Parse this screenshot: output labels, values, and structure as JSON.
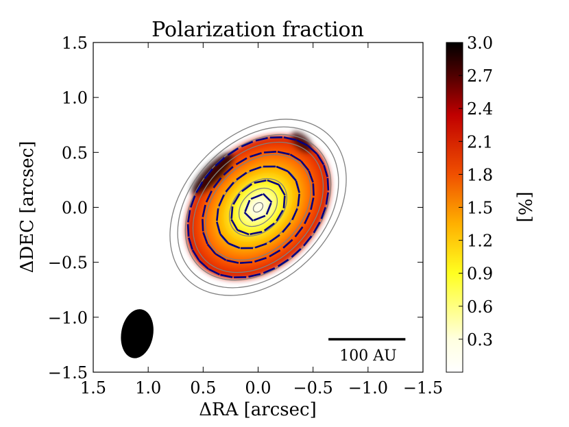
{
  "chart_data": {
    "type": "heatmap",
    "title": "Polarization fraction",
    "xlabel": "ΔRA [arcsec]",
    "ylabel": "ΔDEC [arcsec]",
    "xlim": [
      1.5,
      -1.5
    ],
    "ylim": [
      -1.5,
      1.5
    ],
    "x_ticks": [
      1.5,
      1.0,
      0.5,
      0.0,
      -0.5,
      -1.0,
      -1.5
    ],
    "x_tick_labels": [
      "1.5",
      "1.0",
      "0.5",
      "0.0",
      "−0.5",
      "−1.0",
      "−1.5"
    ],
    "y_ticks": [
      1.5,
      1.0,
      0.5,
      0.0,
      -0.5,
      -1.0,
      -1.5
    ],
    "y_tick_labels": [
      "1.5",
      "1.0",
      "0.5",
      "0.0",
      "−0.5",
      "−1.0",
      "−1.5"
    ],
    "colorbar": {
      "label": "[%]",
      "range": [
        0.0,
        3.0
      ],
      "ticks": [
        0.3,
        0.6,
        0.9,
        1.2,
        1.5,
        1.8,
        2.1,
        2.4,
        2.7,
        3.0
      ],
      "tick_labels": [
        "0.3",
        "0.6",
        "0.9",
        "1.2",
        "1.5",
        "1.8",
        "2.1",
        "2.4",
        "2.7",
        "3.0"
      ],
      "colormap": "afmhot_r",
      "colors": [
        "#ffffff",
        "#ffff40",
        "#ffb000",
        "#f05000",
        "#b00000",
        "#300000",
        "#000000"
      ]
    },
    "disk": {
      "center": [
        0.0,
        0.0
      ],
      "position_angle_deg": 45,
      "major_axis_arcsec": 0.75,
      "minor_axis_arcsec": 0.55,
      "peak_fraction": 0.3,
      "edge_fraction": 2.0
    },
    "contour_levels_arcsec": [
      0.05,
      0.2,
      0.3,
      0.43,
      0.55,
      0.68,
      0.76,
      0.84,
      0.92
    ],
    "contour_color": "#808080",
    "vector_color": "#000080",
    "beam": {
      "center": [
        1.1,
        -1.15
      ],
      "major_arcsec": 0.45,
      "minor_arcsec": 0.29,
      "position_angle_deg": 10
    },
    "scale_bar": {
      "label": "100 AU",
      "length_arcsec": 0.7
    },
    "grid": false
  }
}
